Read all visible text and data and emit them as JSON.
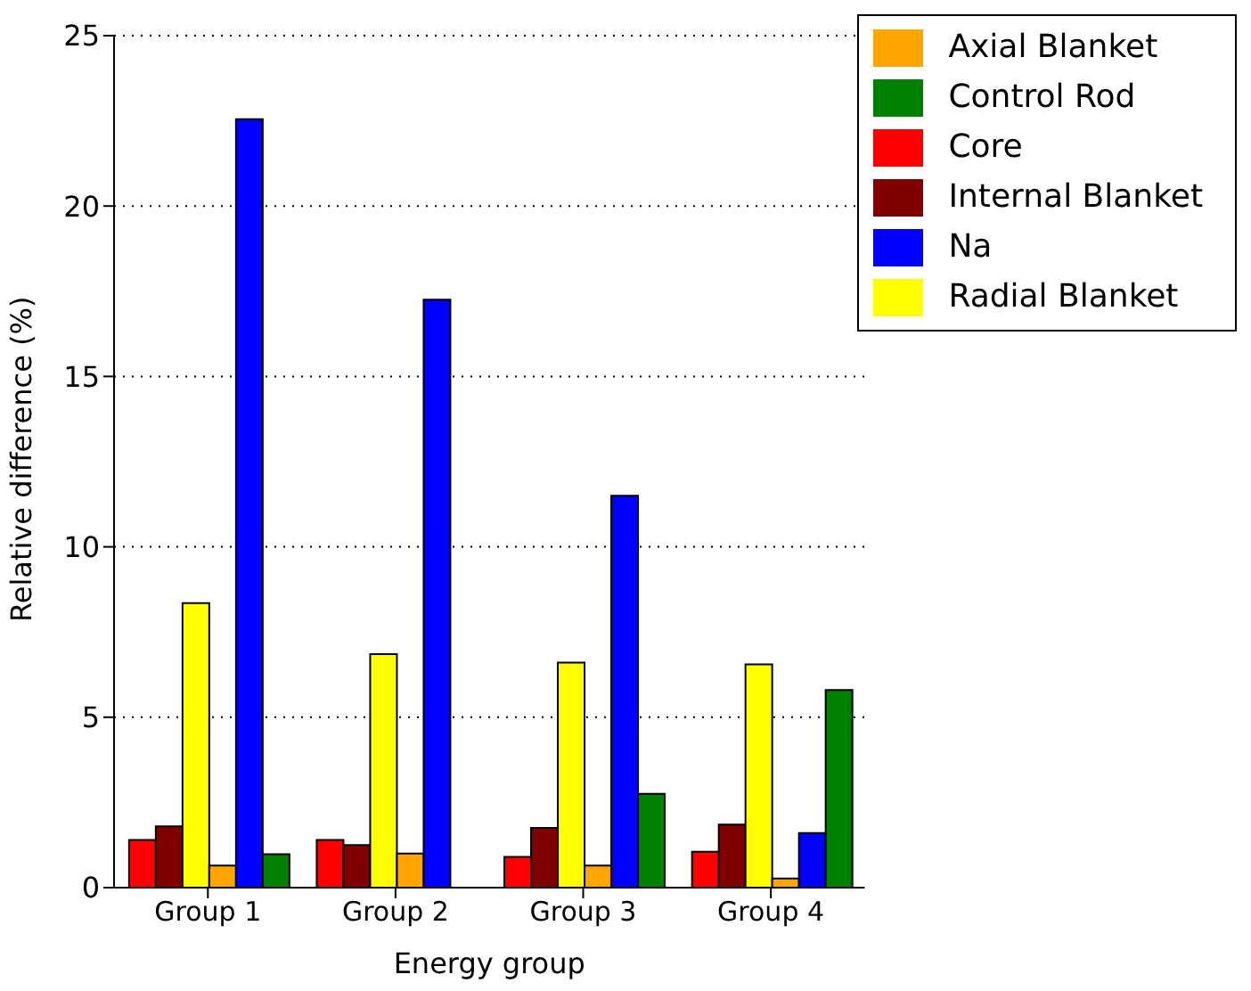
{
  "chart_data": {
    "type": "bar",
    "xlabel": "Energy group",
    "ylabel": "Relative difference (%)",
    "categories": [
      "Group 1",
      "Group 2",
      "Group 3",
      "Group 4"
    ],
    "series": [
      {
        "name": "Core",
        "color": "#ff0000",
        "values": [
          1.4,
          1.4,
          0.9,
          1.05
        ]
      },
      {
        "name": "Internal Blanket",
        "color": "#800000",
        "values": [
          1.8,
          1.25,
          1.75,
          1.85
        ]
      },
      {
        "name": "Radial Blanket",
        "color": "#ffff00",
        "values": [
          8.35,
          6.85,
          6.6,
          6.55
        ]
      },
      {
        "name": "Axial Blanket",
        "color": "#ffa500",
        "values": [
          0.65,
          1.0,
          0.65,
          0.27
        ]
      },
      {
        "name": "Na",
        "color": "#0000ff",
        "values": [
          22.55,
          17.25,
          11.5,
          1.6
        ]
      },
      {
        "name": "Control Rod",
        "color": "#008000",
        "values": [
          0.98,
          0,
          2.75,
          5.8
        ]
      }
    ],
    "ylim": [
      0,
      25
    ],
    "yticks": [
      0,
      5,
      10,
      15,
      20,
      25
    ],
    "grid": "y",
    "legend": "top right"
  }
}
